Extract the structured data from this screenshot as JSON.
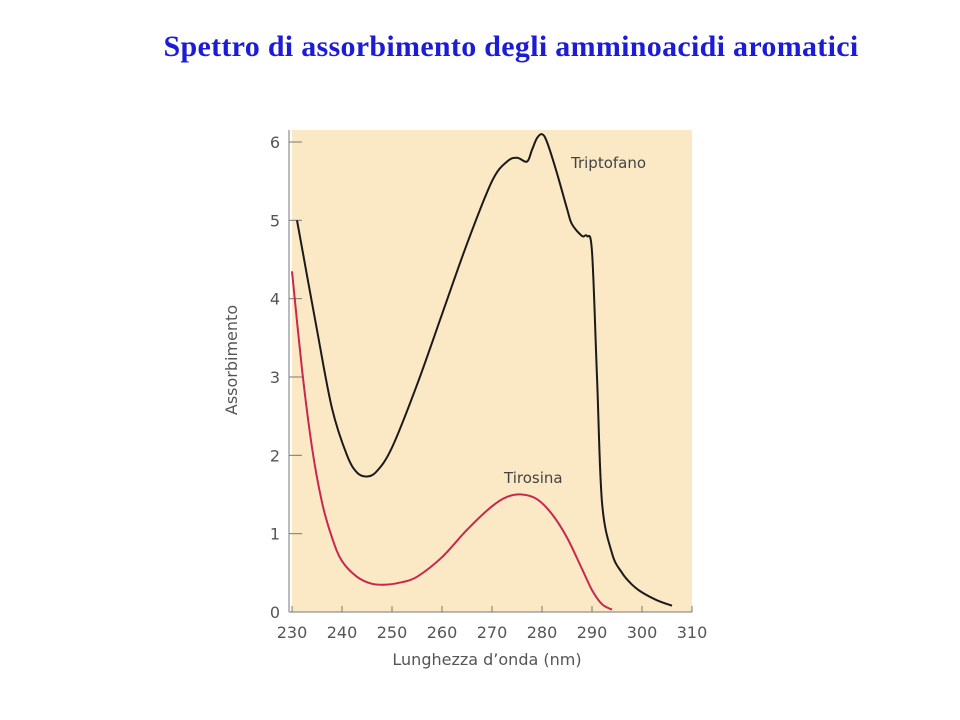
{
  "slide": {
    "title": "Spettro di assorbimento degli amminoacidi aromatici"
  },
  "chart_data": {
    "type": "line",
    "title": "",
    "xlabel": "Lunghezza d’onda (nm)",
    "ylabel": "Assorbimento",
    "xlim": [
      230,
      310
    ],
    "ylim": [
      0,
      6.2
    ],
    "xticks": [
      230,
      240,
      250,
      260,
      270,
      280,
      290,
      300,
      310
    ],
    "yticks": [
      0,
      1,
      2,
      3,
      4,
      5,
      6
    ],
    "grid": false,
    "legend": "none",
    "colors": {
      "background": "#fbe8c4",
      "axis": "#777777"
    },
    "series": [
      {
        "name": "Triptofano",
        "color": "#1a1a1a",
        "x": [
          231,
          235,
          238,
          241,
          243,
          245,
          247,
          250,
          255,
          260,
          265,
          270,
          273,
          275,
          277,
          278,
          279,
          280,
          281,
          283,
          285,
          286,
          288,
          289,
          290,
          291,
          292,
          294,
          296,
          298,
          300,
          303,
          306
        ],
        "y": [
          5.0,
          3.6,
          2.6,
          2.0,
          1.78,
          1.73,
          1.8,
          2.1,
          2.9,
          3.8,
          4.7,
          5.5,
          5.75,
          5.8,
          5.75,
          5.9,
          6.05,
          6.1,
          6.0,
          5.6,
          5.15,
          4.95,
          4.8,
          4.8,
          4.6,
          3.0,
          1.4,
          0.75,
          0.5,
          0.35,
          0.25,
          0.15,
          0.08
        ]
      },
      {
        "name": "Tirosina",
        "color": "#c8284e",
        "x": [
          230,
          232,
          234,
          236,
          238,
          240,
          243,
          246,
          249,
          252,
          255,
          260,
          265,
          270,
          273,
          276,
          279,
          282,
          285,
          288,
          290,
          292,
          294
        ],
        "y": [
          4.35,
          3.1,
          2.1,
          1.4,
          0.95,
          0.65,
          0.45,
          0.36,
          0.35,
          0.38,
          0.45,
          0.7,
          1.05,
          1.35,
          1.47,
          1.5,
          1.44,
          1.25,
          0.95,
          0.55,
          0.28,
          0.1,
          0.03
        ]
      }
    ]
  }
}
